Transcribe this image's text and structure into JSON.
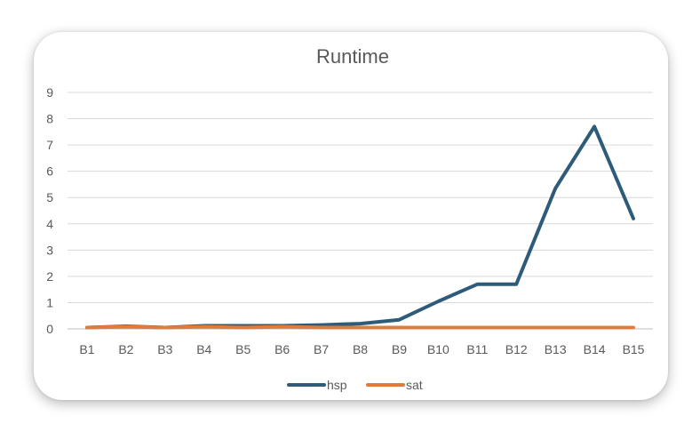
{
  "chart_data": {
    "type": "line",
    "title": "Runtime",
    "xlabel": "",
    "ylabel": "",
    "categories": [
      "B1",
      "B2",
      "B3",
      "B4",
      "B5",
      "B6",
      "B7",
      "B8",
      "B9",
      "B10",
      "B11",
      "B12",
      "B13",
      "B14",
      "B15"
    ],
    "ylim": [
      0,
      9
    ],
    "yticks": [
      "0",
      "1",
      "2",
      "3",
      "4",
      "5",
      "6",
      "7",
      "8",
      "9"
    ],
    "grid": true,
    "legend_position": "bottom",
    "series": [
      {
        "name": "hsp",
        "color": "#2e5b7a",
        "values": [
          0.05,
          0.1,
          0.05,
          0.12,
          0.12,
          0.12,
          0.15,
          0.2,
          0.35,
          1.05,
          1.7,
          1.7,
          5.35,
          7.7,
          4.2
        ]
      },
      {
        "name": "sat",
        "color": "#e07b3f",
        "values": [
          0.05,
          0.08,
          0.05,
          0.08,
          0.05,
          0.08,
          0.05,
          0.05,
          0.05,
          0.05,
          0.05,
          0.05,
          0.05,
          0.05,
          0.05
        ]
      }
    ]
  }
}
